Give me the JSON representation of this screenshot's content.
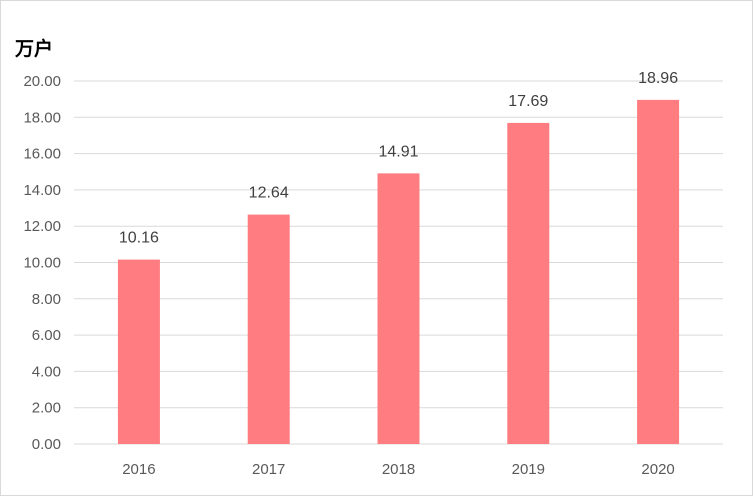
{
  "chart_data": {
    "type": "bar",
    "unit": "万户",
    "categories": [
      "2016",
      "2017",
      "2018",
      "2019",
      "2020"
    ],
    "values": [
      10.16,
      12.64,
      14.91,
      17.69,
      18.96
    ],
    "data_labels": [
      "10.16",
      "12.64",
      "14.91",
      "17.69",
      "18.96"
    ],
    "y_ticks": [
      "0.00",
      "2.00",
      "4.00",
      "6.00",
      "8.00",
      "10.00",
      "12.00",
      "14.00",
      "16.00",
      "18.00",
      "20.00"
    ],
    "ylim": [
      0,
      20
    ],
    "grid": true,
    "legend": "none",
    "colors": {
      "bar": "#ff7c80",
      "grid": "#d9d9d9"
    }
  }
}
